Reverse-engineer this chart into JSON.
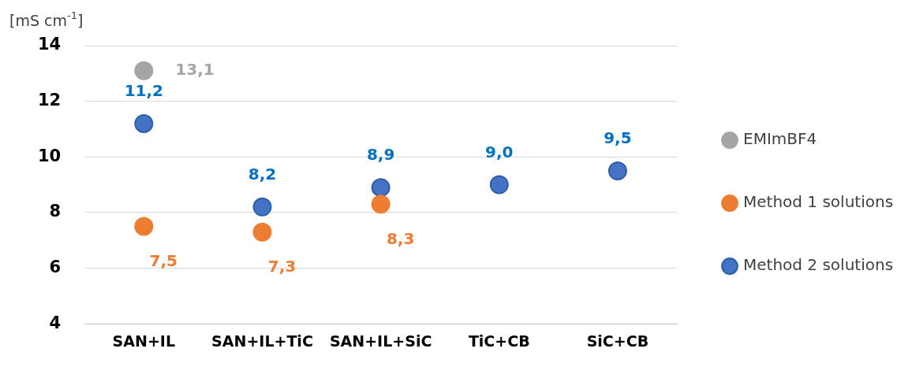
{
  "chart_data": {
    "type": "scatter",
    "ylabel": "[mS cm$^{-1}$]",
    "categories": [
      "SAN+IL",
      "SAN+IL+TiC",
      "SAN+IL+SiC",
      "TiC+CB",
      "SiC+CB"
    ],
    "series": [
      {
        "name": "EMImBF4",
        "color": "#a5a5a5",
        "values": [
          13.1,
          null,
          null,
          null,
          null
        ],
        "value_labels": [
          "13,1",
          null,
          null,
          null,
          null
        ]
      },
      {
        "name": "Method 1 solutions",
        "color": "#ed7d31",
        "values": [
          7.5,
          7.3,
          8.3,
          null,
          null
        ],
        "value_labels": [
          "7,5",
          "7,3",
          "8,3",
          null,
          null
        ]
      },
      {
        "name": "Method 2 solutions",
        "color": "#4472c4",
        "values": [
          11.2,
          8.2,
          8.9,
          9.0,
          9.5
        ],
        "value_labels": [
          "11,2",
          "8,2",
          "8,9",
          "9,0",
          "9,5"
        ]
      }
    ],
    "ylim": [
      4,
      14
    ],
    "yticks": [
      4,
      6,
      8,
      10,
      12,
      14
    ],
    "grid": "y",
    "legend": "right",
    "marker": "circle"
  }
}
